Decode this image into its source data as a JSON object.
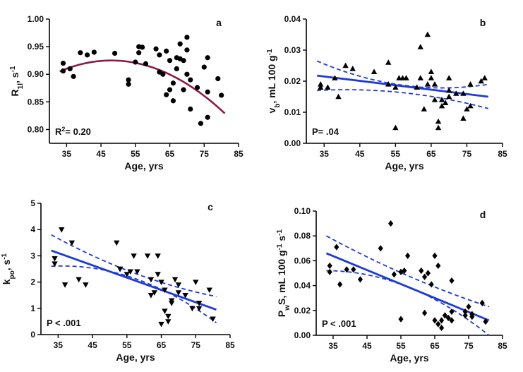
{
  "chart_data": [
    {
      "panel": "a",
      "type": "scatter",
      "xlabel": "Age, yrs",
      "ylabel_main": "R",
      "ylabel_sub": "1l",
      "ylabel_tail": ", s",
      "ylabel_sup": "-1",
      "annotation": {
        "main": "R",
        "sup": "2",
        "tail": "= 0.20"
      },
      "xlim": [
        30,
        85
      ],
      "ylim": [
        0.775,
        1.0
      ],
      "xticks": [
        35,
        45,
        55,
        65,
        75,
        85
      ],
      "yticks": [
        0.8,
        0.85,
        0.9,
        0.95,
        1.0
      ],
      "ytick_labels": [
        "0.80",
        "0.85",
        "0.90",
        "0.95",
        "1.00"
      ],
      "marker": "circle",
      "fit": {
        "kind": "quadratic",
        "peak_x": 48,
        "peak_y": 0.925,
        "a": -8.8e-05,
        "x_range": [
          33,
          81
        ],
        "color": "#8b1a4a"
      },
      "points": [
        [
          34,
          0.92
        ],
        [
          34,
          0.906
        ],
        [
          36,
          0.91
        ],
        [
          37,
          0.896
        ],
        [
          39,
          0.939
        ],
        [
          41,
          0.935
        ],
        [
          43,
          0.94
        ],
        [
          49,
          0.938
        ],
        [
          53,
          0.89
        ],
        [
          53,
          0.882
        ],
        [
          55,
          0.922
        ],
        [
          56,
          0.95
        ],
        [
          56,
          0.939
        ],
        [
          57,
          0.949
        ],
        [
          58,
          0.919
        ],
        [
          61,
          0.946
        ],
        [
          62,
          0.904
        ],
        [
          62,
          0.935
        ],
        [
          63,
          0.9
        ],
        [
          64,
          0.942
        ],
        [
          64,
          0.863
        ],
        [
          65,
          0.925
        ],
        [
          65,
          0.872
        ],
        [
          66,
          0.884
        ],
        [
          66,
          0.852
        ],
        [
          67,
          0.93
        ],
        [
          67,
          0.91
        ],
        [
          68,
          0.955
        ],
        [
          68,
          0.928
        ],
        [
          69,
          0.925
        ],
        [
          69,
          0.872
        ],
        [
          70,
          0.967
        ],
        [
          70,
          0.944
        ],
        [
          70,
          0.9
        ],
        [
          71,
          0.89
        ],
        [
          71,
          0.837
        ],
        [
          73,
          0.876
        ],
        [
          74,
          0.811
        ],
        [
          75,
          0.913
        ],
        [
          76,
          0.93
        ],
        [
          76,
          0.822
        ],
        [
          76,
          0.868
        ],
        [
          79,
          0.892
        ],
        [
          80,
          0.862
        ]
      ]
    },
    {
      "panel": "b",
      "type": "scatter",
      "xlabel": "Age, yrs",
      "ylabel_main": "v",
      "ylabel_sub": "b",
      "ylabel_tail": ", mL 100 g",
      "ylabel_sup": "-1",
      "annotation": {
        "main": "P= .04",
        "sup": "",
        "tail": ""
      },
      "xlim": [
        30,
        85
      ],
      "ylim": [
        0,
        0.04
      ],
      "xticks": [
        35,
        45,
        55,
        65,
        75,
        85
      ],
      "yticks": [
        0,
        0.01,
        0.02,
        0.03,
        0.04
      ],
      "ytick_labels": [
        "0.00",
        "0.01",
        "0.02",
        "0.03",
        "0.04"
      ],
      "marker": "triangle-up",
      "fit": {
        "kind": "linear",
        "x_range": [
          33,
          81
        ],
        "y_start": 0.0218,
        "y_end": 0.015,
        "ci_upper": [
          0.0265,
          0.0187,
          0.019
        ],
        "ci_lower": [
          0.017,
          0.0163,
          0.0112
        ],
        "color": "#1f3bd6"
      },
      "points": [
        [
          34,
          0.019
        ],
        [
          34,
          0.018
        ],
        [
          36,
          0.018
        ],
        [
          38,
          0.021
        ],
        [
          39,
          0.015
        ],
        [
          41,
          0.025
        ],
        [
          43,
          0.024
        ],
        [
          49,
          0.023
        ],
        [
          53,
          0.026
        ],
        [
          53,
          0.019
        ],
        [
          55,
          0.005
        ],
        [
          55,
          0.018
        ],
        [
          56,
          0.021
        ],
        [
          57,
          0.021
        ],
        [
          58,
          0.021
        ],
        [
          61,
          0.018
        ],
        [
          62,
          0.021
        ],
        [
          62,
          0.031
        ],
        [
          63,
          0.011
        ],
        [
          64,
          0.019
        ],
        [
          64,
          0.035
        ],
        [
          65,
          0.023
        ],
        [
          65,
          0.021
        ],
        [
          66,
          0.019
        ],
        [
          66,
          0.014
        ],
        [
          67,
          0.007
        ],
        [
          67,
          0.005
        ],
        [
          68,
          0.014
        ],
        [
          68,
          0.012
        ],
        [
          69,
          0.013
        ],
        [
          70,
          0.021
        ],
        [
          70,
          0.017
        ],
        [
          70,
          0.015
        ],
        [
          72,
          0.016
        ],
        [
          74,
          0.016
        ],
        [
          74,
          0.008
        ],
        [
          75,
          0.011
        ],
        [
          76,
          0.019
        ],
        [
          76,
          0.012
        ],
        [
          79,
          0.02
        ],
        [
          80,
          0.021
        ]
      ]
    },
    {
      "panel": "c",
      "type": "scatter",
      "xlabel": "Age, yrs",
      "ylabel_main": "k",
      "ylabel_sub": "po",
      "ylabel_tail": ", s",
      "ylabel_sup": "-1",
      "annotation": {
        "main": "P < .001",
        "sup": "",
        "tail": ""
      },
      "xlim": [
        30,
        85
      ],
      "ylim": [
        0,
        5
      ],
      "xticks": [
        35,
        45,
        55,
        65,
        75,
        85
      ],
      "yticks": [
        0,
        1,
        2,
        3,
        4,
        5
      ],
      "ytick_labels": [
        "0",
        "1",
        "2",
        "3",
        "4",
        "5"
      ],
      "marker": "triangle-down",
      "fit": {
        "kind": "linear",
        "x_range": [
          33,
          81
        ],
        "y_start": 3.2,
        "y_end": 0.95,
        "ci_upper": [
          3.8,
          2.35,
          1.45
        ],
        "ci_lower": [
          2.6,
          2.15,
          0.45
        ],
        "color": "#1f3bd6"
      },
      "points": [
        [
          34,
          2.9
        ],
        [
          34,
          2.7
        ],
        [
          36,
          4.0
        ],
        [
          37,
          1.9
        ],
        [
          39,
          3.5
        ],
        [
          41,
          2.1
        ],
        [
          43,
          1.9
        ],
        [
          52,
          3.5
        ],
        [
          53,
          2.5
        ],
        [
          53,
          2.5
        ],
        [
          55,
          2.3
        ],
        [
          56,
          2.4
        ],
        [
          57,
          3.0
        ],
        [
          58,
          2.4
        ],
        [
          61,
          3.0
        ],
        [
          62,
          2.1
        ],
        [
          62,
          1.5
        ],
        [
          63,
          1.6
        ],
        [
          64,
          3.0
        ],
        [
          64,
          2.3
        ],
        [
          65,
          2.0
        ],
        [
          65,
          0.4
        ],
        [
          66,
          1.7
        ],
        [
          66,
          0.9
        ],
        [
          67,
          0.5
        ],
        [
          67,
          0.7
        ],
        [
          68,
          1.3
        ],
        [
          68,
          1.2
        ],
        [
          69,
          2.1
        ],
        [
          70,
          1.9
        ],
        [
          70,
          1.6
        ],
        [
          72,
          1.5
        ],
        [
          74,
          1.0
        ],
        [
          75,
          2.0
        ],
        [
          76,
          1.2
        ],
        [
          76,
          1.0
        ],
        [
          79,
          1.7
        ],
        [
          80,
          0.6
        ]
      ]
    },
    {
      "panel": "d",
      "type": "scatter",
      "xlabel": "Age, yrs",
      "ylabel_main": "P",
      "ylabel_sub": "w",
      "ylabel_tail": "S, mL 100 g",
      "ylabel_sup": "-1",
      "ylabel_tail2": " s",
      "ylabel_sup2": "-1",
      "annotation": {
        "main": "P < .001",
        "sup": "",
        "tail": ""
      },
      "xlim": [
        30,
        85
      ],
      "ylim": [
        0,
        0.1
      ],
      "xticks": [
        35,
        45,
        55,
        65,
        75,
        85
      ],
      "yticks": [
        0,
        0.02,
        0.04,
        0.06,
        0.08,
        0.1
      ],
      "ytick_labels": [
        "0.00",
        "0.02",
        "0.04",
        "0.06",
        "0.08",
        "0.10"
      ],
      "marker": "diamond",
      "fit": {
        "kind": "linear",
        "x_range": [
          33,
          81
        ],
        "y_start": 0.066,
        "y_end": 0.012,
        "ci_upper": [
          0.08,
          0.048,
          0.023
        ],
        "ci_lower": [
          0.052,
          0.039,
          0.0
        ],
        "color": "#1f3bd6"
      },
      "points": [
        [
          34,
          0.056
        ],
        [
          34,
          0.051
        ],
        [
          36,
          0.071
        ],
        [
          37,
          0.041
        ],
        [
          39,
          0.053
        ],
        [
          41,
          0.053
        ],
        [
          43,
          0.045
        ],
        [
          49,
          0.07
        ],
        [
          52,
          0.09
        ],
        [
          53,
          0.049
        ],
        [
          55,
          0.051
        ],
        [
          55,
          0.013
        ],
        [
          56,
          0.052
        ],
        [
          57,
          0.064
        ],
        [
          61,
          0.052
        ],
        [
          62,
          0.047
        ],
        [
          62,
          0.018
        ],
        [
          63,
          0.05
        ],
        [
          64,
          0.041
        ],
        [
          65,
          0.064
        ],
        [
          65,
          0.012
        ],
        [
          66,
          0.056
        ],
        [
          66,
          0.009
        ],
        [
          67,
          0.012
        ],
        [
          67,
          0.006
        ],
        [
          68,
          0.016
        ],
        [
          69,
          0.014
        ],
        [
          70,
          0.044
        ],
        [
          70,
          0.012
        ],
        [
          70,
          0.019
        ],
        [
          74,
          0.019
        ],
        [
          74,
          0.016
        ],
        [
          75,
          0.023
        ],
        [
          76,
          0.015
        ],
        [
          76,
          0.017
        ],
        [
          79,
          0.026
        ],
        [
          80,
          0.011
        ]
      ]
    }
  ]
}
